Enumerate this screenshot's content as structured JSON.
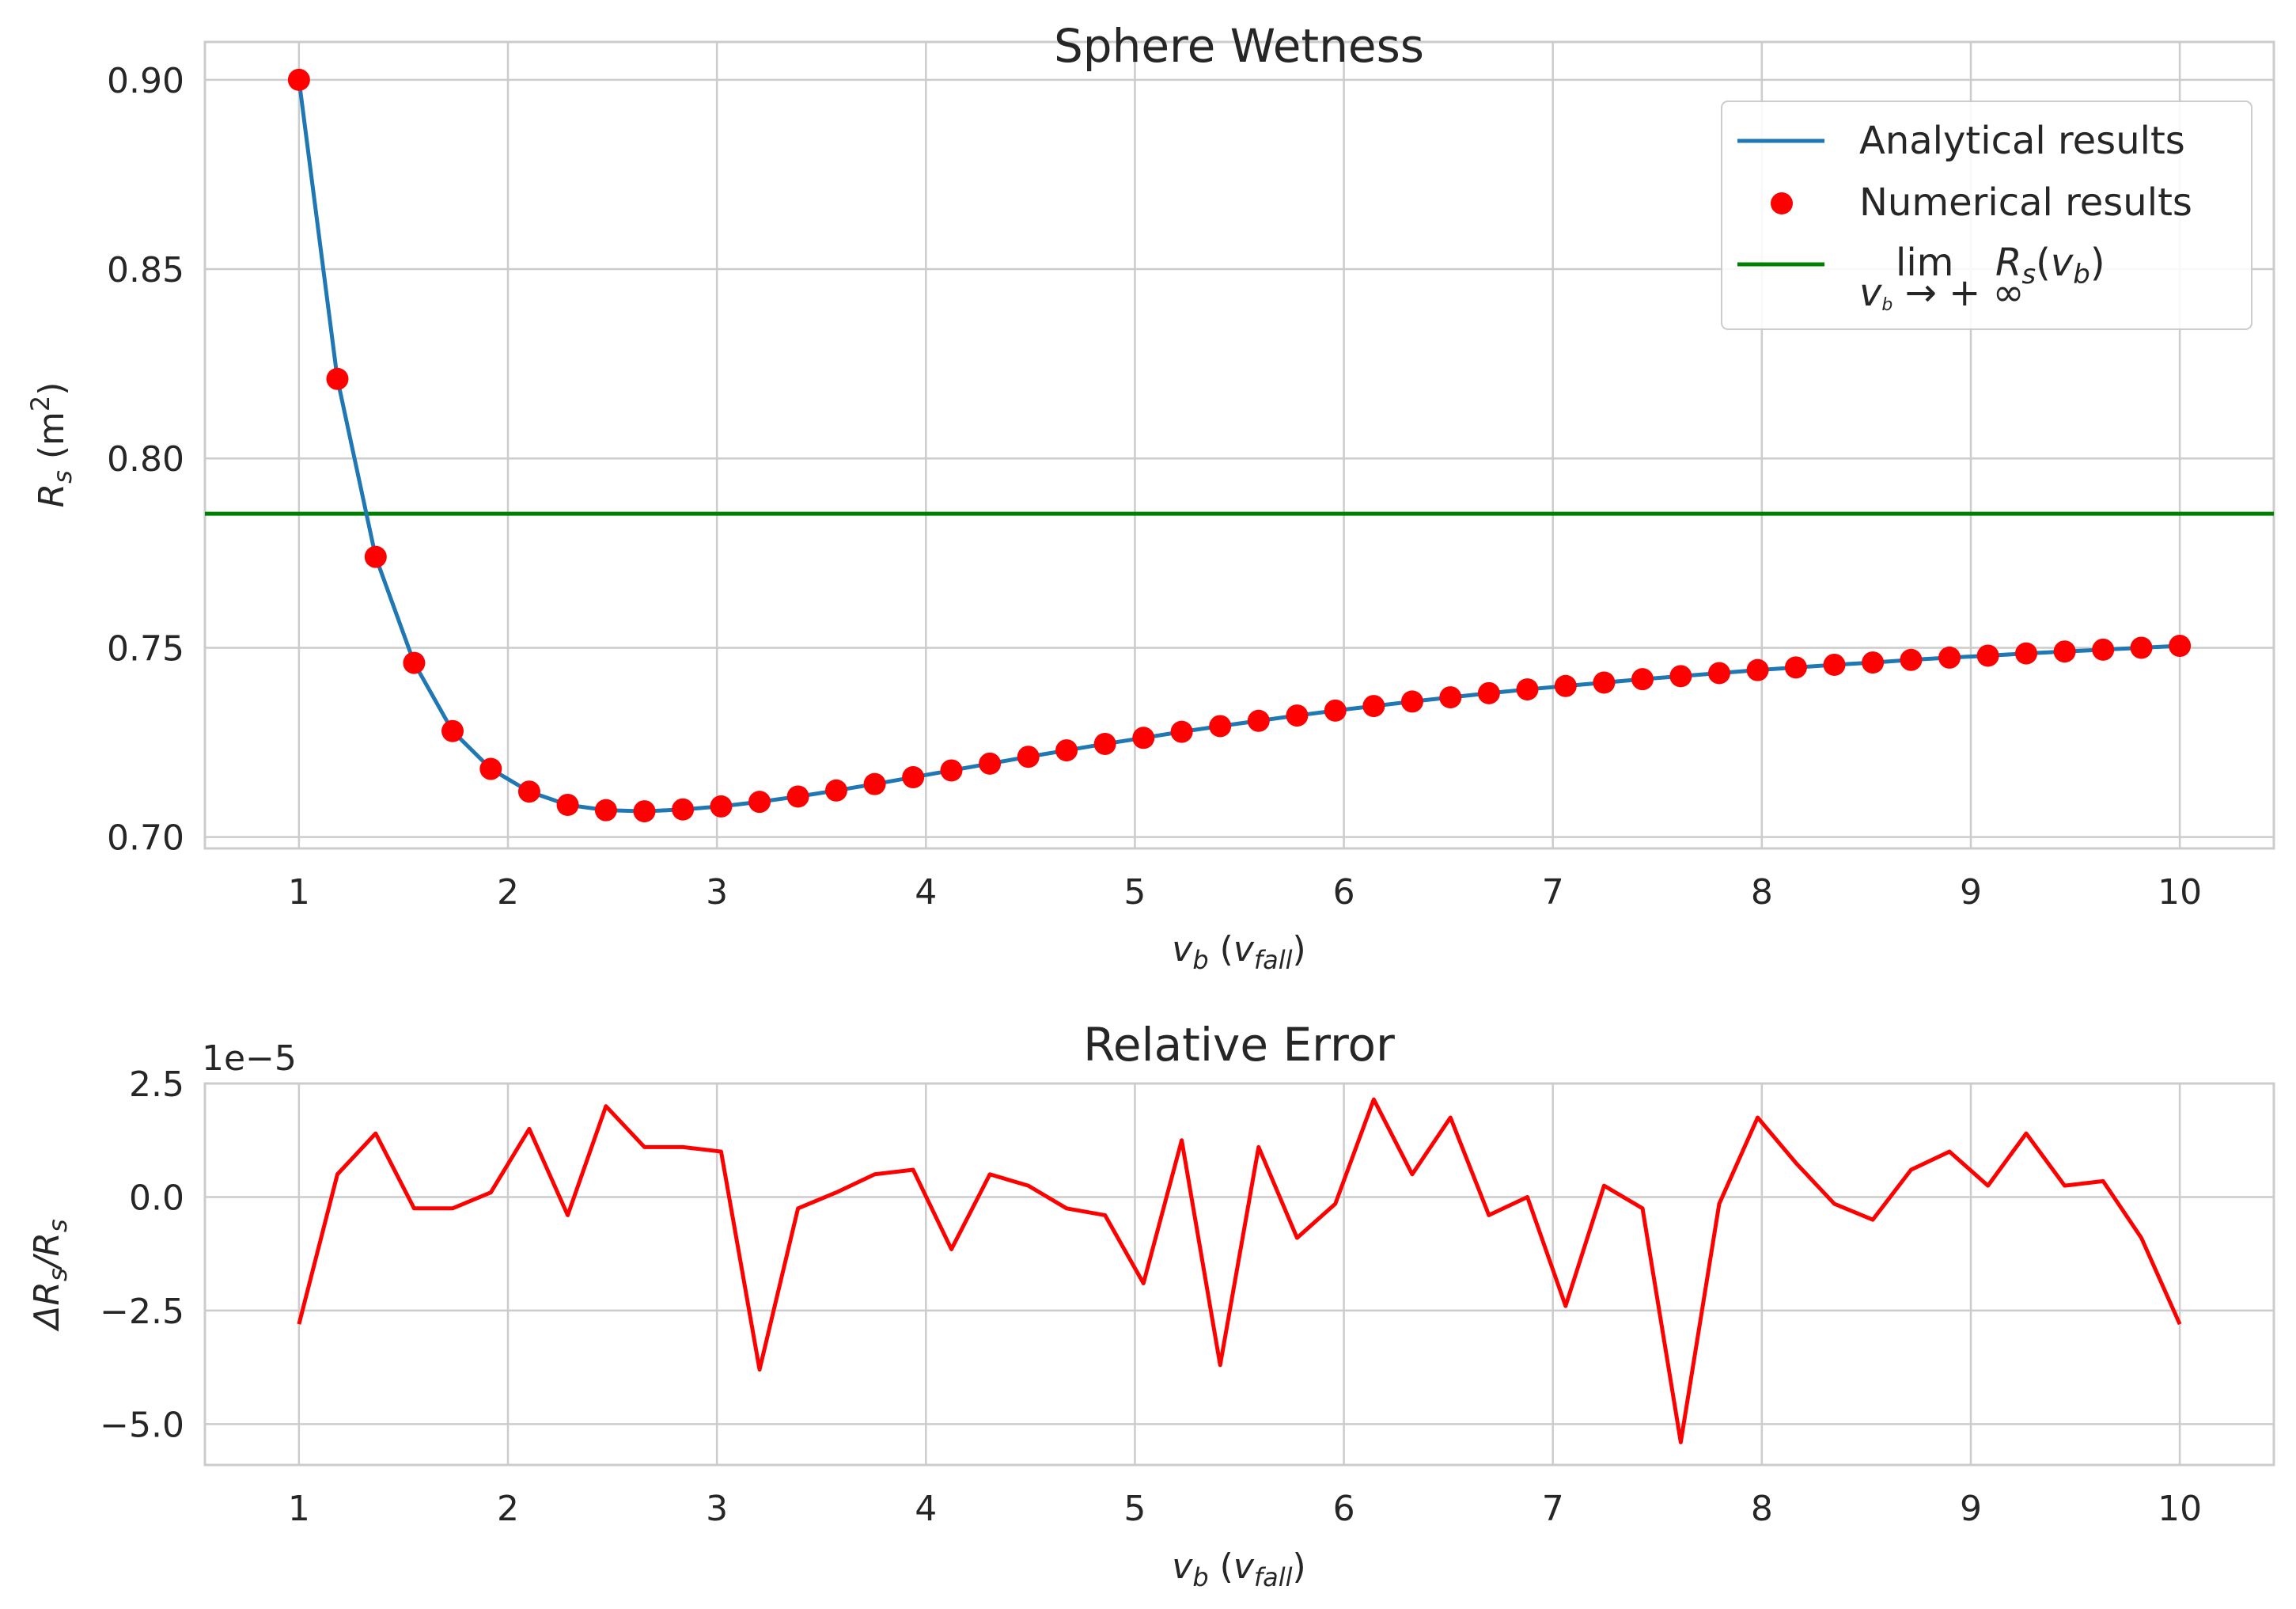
{
  "chart_data": [
    {
      "type": "line",
      "title": "Sphere Wetness",
      "xlabel": "v_b (v_fall)",
      "ylabel": "R_s (m²)",
      "xlim": [
        0.55,
        10.45
      ],
      "ylim": [
        0.697,
        0.91
      ],
      "xticks": [
        1,
        2,
        3,
        4,
        5,
        6,
        7,
        8,
        9,
        10
      ],
      "xtick_labels": [
        "1",
        "2",
        "3",
        "4",
        "5",
        "6",
        "7",
        "8",
        "9",
        "10"
      ],
      "yticks": [
        0.7,
        0.75,
        0.8,
        0.85,
        0.9
      ],
      "ytick_labels": [
        "0.70",
        "0.75",
        "0.80",
        "0.85",
        "0.90"
      ],
      "grid": true,
      "legend_position": "top-right",
      "x": [
        1.0,
        1.184,
        1.367,
        1.551,
        1.735,
        1.918,
        2.102,
        2.286,
        2.469,
        2.653,
        2.837,
        3.02,
        3.204,
        3.388,
        3.571,
        3.755,
        3.939,
        4.122,
        4.306,
        4.49,
        4.673,
        4.857,
        5.041,
        5.224,
        5.408,
        5.592,
        5.776,
        5.959,
        6.143,
        6.327,
        6.51,
        6.694,
        6.878,
        7.061,
        7.245,
        7.429,
        7.612,
        7.796,
        7.98,
        8.163,
        8.347,
        8.531,
        8.714,
        8.898,
        9.082,
        9.265,
        9.449,
        9.633,
        9.816,
        10.0
      ],
      "series": [
        {
          "name": "Analytical results",
          "style": "line",
          "color": "#1f77b4",
          "values": [
            0.9,
            0.821,
            0.774,
            0.746,
            0.728,
            0.718,
            0.712,
            0.7085,
            0.7071,
            0.7068,
            0.7073,
            0.7081,
            0.7093,
            0.7107,
            0.7123,
            0.714,
            0.7158,
            0.7176,
            0.7194,
            0.7212,
            0.7229,
            0.7246,
            0.7262,
            0.7278,
            0.7293,
            0.7307,
            0.7321,
            0.7334,
            0.7346,
            0.7358,
            0.7369,
            0.738,
            0.739,
            0.7399,
            0.7408,
            0.7417,
            0.7425,
            0.7433,
            0.7441,
            0.7448,
            0.7455,
            0.7461,
            0.7468,
            0.7474,
            0.7479,
            0.7485,
            0.749,
            0.7495,
            0.75,
            0.7505
          ]
        },
        {
          "name": "Numerical results",
          "style": "scatter",
          "color": "#ff0000",
          "values": [
            0.9,
            0.821,
            0.774,
            0.746,
            0.728,
            0.718,
            0.712,
            0.7085,
            0.7071,
            0.7068,
            0.7073,
            0.7081,
            0.7093,
            0.7107,
            0.7123,
            0.714,
            0.7158,
            0.7176,
            0.7194,
            0.7212,
            0.7229,
            0.7246,
            0.7262,
            0.7278,
            0.7293,
            0.7307,
            0.7321,
            0.7334,
            0.7346,
            0.7358,
            0.7369,
            0.738,
            0.739,
            0.7399,
            0.7408,
            0.7417,
            0.7425,
            0.7433,
            0.7441,
            0.7448,
            0.7455,
            0.7461,
            0.7468,
            0.7474,
            0.7479,
            0.7485,
            0.749,
            0.7495,
            0.75,
            0.7505
          ]
        },
        {
          "name": "lim v_b → +∞ R_s(v_b)",
          "style": "hline",
          "color": "#008000",
          "value": 0.7854
        }
      ]
    },
    {
      "type": "line",
      "title": "Relative Error",
      "xlabel": "v_b (v_fall)",
      "ylabel": "ΔR_s/R_s",
      "offset_text": "1e−5",
      "xlim": [
        0.55,
        10.45
      ],
      "ylim": [
        -5.9,
        2.5
      ],
      "xticks": [
        1,
        2,
        3,
        4,
        5,
        6,
        7,
        8,
        9,
        10
      ],
      "xtick_labels": [
        "1",
        "2",
        "3",
        "4",
        "5",
        "6",
        "7",
        "8",
        "9",
        "10"
      ],
      "yticks": [
        2.5,
        0.0,
        -2.5,
        -5.0
      ],
      "ytick_labels": [
        "2.5",
        "0.0",
        "−2.5",
        "−5.0"
      ],
      "grid": true,
      "x": [
        1.0,
        1.184,
        1.367,
        1.551,
        1.735,
        1.918,
        2.102,
        2.286,
        2.469,
        2.653,
        2.837,
        3.02,
        3.204,
        3.388,
        3.571,
        3.755,
        3.939,
        4.122,
        4.306,
        4.49,
        4.673,
        4.857,
        5.041,
        5.224,
        5.408,
        5.592,
        5.776,
        5.959,
        6.143,
        6.327,
        6.51,
        6.694,
        6.878,
        7.061,
        7.245,
        7.429,
        7.612,
        7.796,
        7.98,
        8.163,
        8.347,
        8.531,
        8.714,
        8.898,
        9.082,
        9.265,
        9.449,
        9.633,
        9.816,
        10.0
      ],
      "series": [
        {
          "name": "",
          "style": "line",
          "color": "#ff0000",
          "values": [
            -2.8,
            0.5,
            1.4,
            -0.25,
            -0.25,
            0.1,
            1.5,
            -0.4,
            2.0,
            1.1,
            1.1,
            1.0,
            -3.8,
            -0.25,
            0.1,
            0.5,
            0.6,
            -1.15,
            0.5,
            0.25,
            -0.25,
            -0.4,
            -1.9,
            1.25,
            -3.7,
            1.1,
            -0.9,
            -0.15,
            2.15,
            0.5,
            1.75,
            -0.4,
            0.0,
            -2.4,
            0.25,
            -0.25,
            -5.4,
            -0.15,
            1.75,
            0.75,
            -0.15,
            -0.5,
            0.6,
            1.0,
            0.25,
            1.4,
            0.25,
            0.35,
            -0.9,
            -2.8
          ]
        }
      ]
    }
  ]
}
